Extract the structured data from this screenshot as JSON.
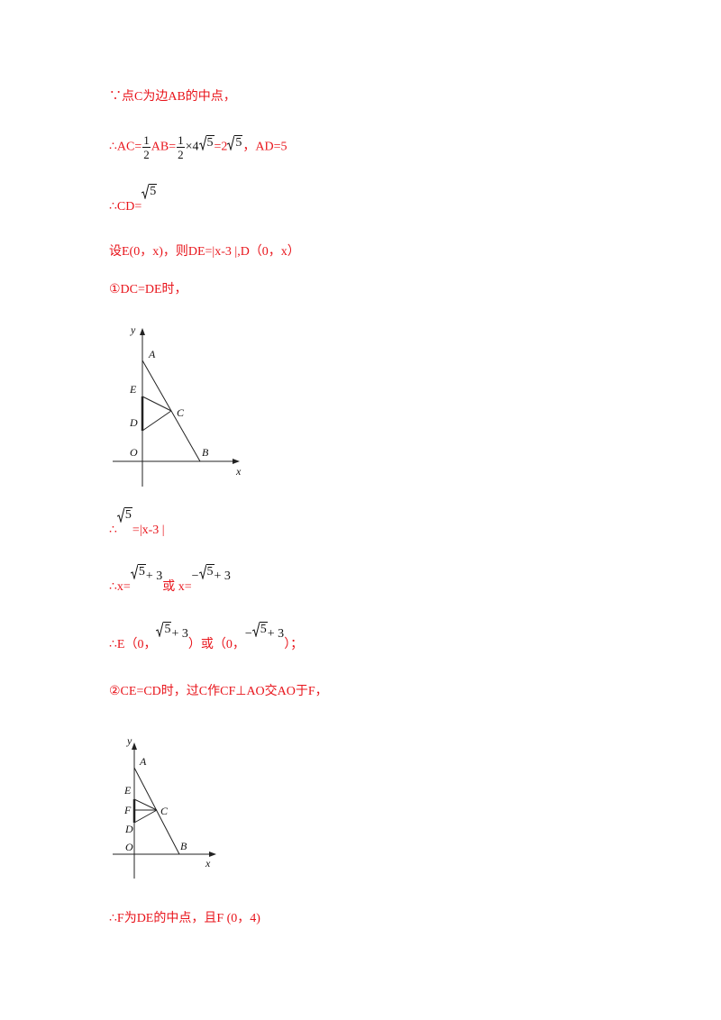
{
  "lines": [
    [
      {
        "t": "∵点C为边AB的中点，"
      }
    ],
    [
      {
        "t": "∴AC="
      },
      {
        "frac": [
          "1",
          "2"
        ]
      },
      {
        "t": "AB="
      },
      {
        "frac": [
          "1",
          "2"
        ]
      },
      {
        "m": "×4"
      },
      {
        "sqrt": "5"
      },
      {
        "t": "=2"
      },
      {
        "sqrt": "5"
      },
      {
        "t": "，AD=5"
      }
    ],
    [
      {
        "t": "∴CD="
      },
      {
        "sqrt": "5"
      }
    ],
    [
      {
        "t": "设E(0，x)，则DE=|x-3 |,D（0，x）"
      }
    ],
    [
      {
        "t": "①DC=DE时，"
      }
    ],
    [
      {
        "t": "∴"
      },
      {
        "sqrt": "5"
      },
      {
        "t": "=|x-3 |"
      }
    ],
    [
      {
        "t": "∴x="
      },
      {
        "sqrt": "5"
      },
      {
        "m": "+ 3"
      },
      {
        "t": "或 x="
      },
      {
        "m": "−"
      },
      {
        "sqrt": "5"
      },
      {
        "m": "+ 3"
      }
    ],
    [
      {
        "t": "∴E（0，"
      },
      {
        "sqrt": "5"
      },
      {
        "m": "+ 3"
      },
      {
        "t": "）或（0，"
      },
      {
        "m": "−"
      },
      {
        "sqrt": "5"
      },
      {
        "m": "+ 3"
      },
      {
        "t": "）；"
      }
    ],
    [
      {
        "t": "②CE=CD时，过C作CF⊥AO交AO于F，"
      }
    ],
    [
      {
        "t": "∴F为DE的中点，且F (0，4)"
      }
    ]
  ],
  "figures": [
    {
      "labels": [
        "y",
        "A",
        "E",
        "C",
        "D",
        "O",
        "B",
        "x"
      ]
    },
    {
      "labels": [
        "y",
        "A",
        "E",
        "F",
        "C",
        "D",
        "O",
        "B",
        "x"
      ]
    }
  ]
}
